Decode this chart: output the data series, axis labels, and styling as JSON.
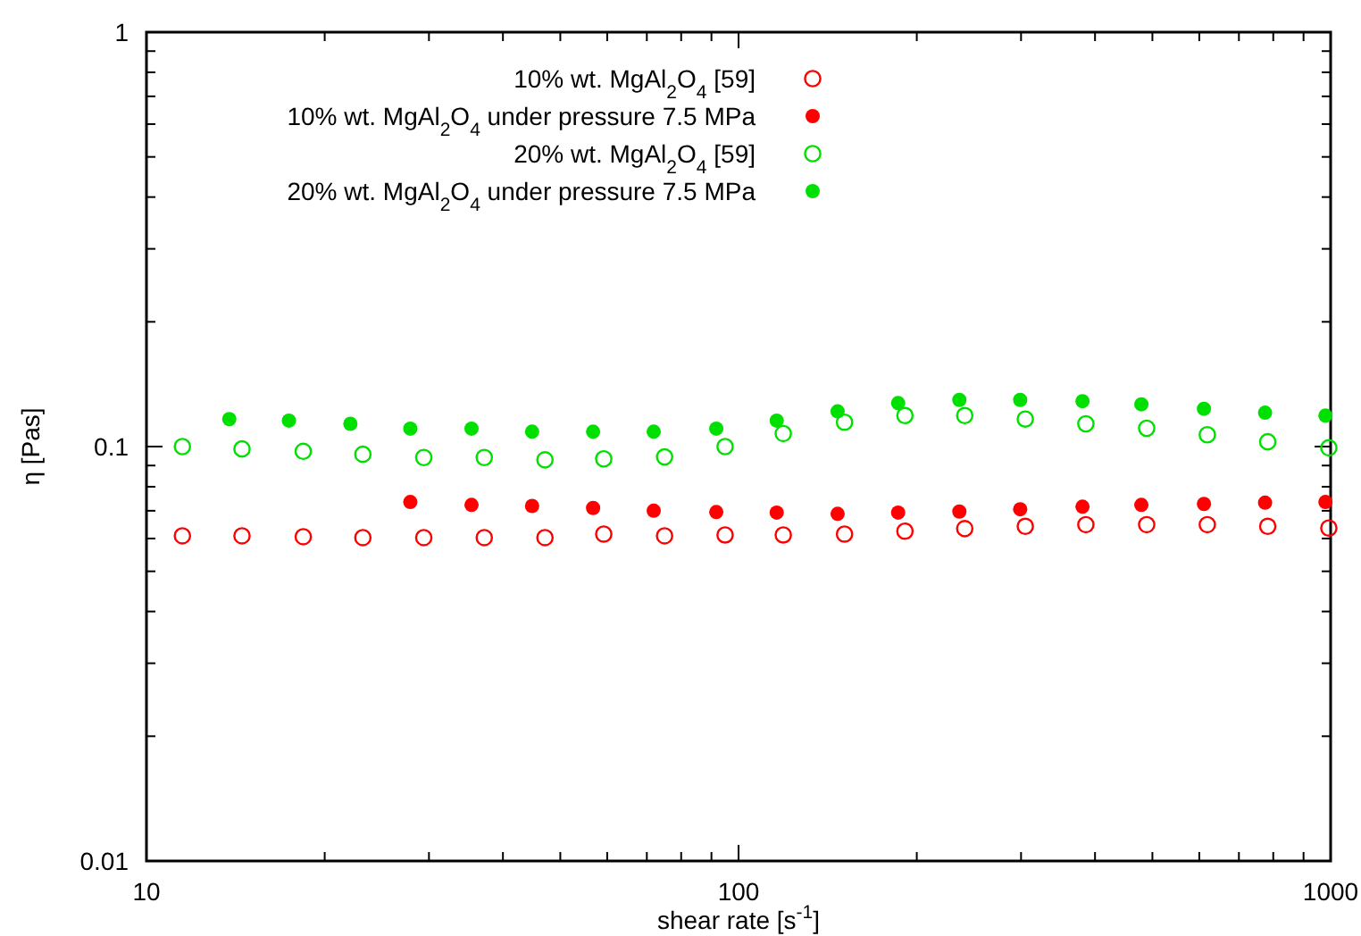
{
  "chart_data": {
    "type": "scatter",
    "xlabel": "shear rate [s$^{-1}$]",
    "ylabel": "η [Pas]",
    "log": "xy",
    "legend": "top",
    "marker": "circle",
    "grid": false,
    "xlim": [
      10,
      1000
    ],
    "xticks": [
      10,
      100,
      1000,
      {
        "value": 20,
        "label": null
      },
      {
        "value": 30,
        "label": null
      },
      {
        "value": 40,
        "label": null
      },
      {
        "value": 50,
        "label": null
      },
      {
        "value": 60,
        "label": null
      },
      {
        "value": 70,
        "label": null
      },
      {
        "value": 80,
        "label": null
      },
      {
        "value": 90,
        "label": null
      },
      {
        "value": 200,
        "label": null
      },
      {
        "value": 300,
        "label": null
      },
      {
        "value": 400,
        "label": null
      },
      {
        "value": 500,
        "label": null
      },
      {
        "value": 600,
        "label": null
      },
      {
        "value": 700,
        "label": null
      },
      {
        "value": 800,
        "label": null
      },
      {
        "value": 900,
        "label": null
      }
    ],
    "ylim": [
      0.01,
      1
    ],
    "yticks": [
      0.01,
      0.1,
      1,
      {
        "value": 0.02,
        "label": null
      },
      {
        "value": 0.03,
        "label": null
      },
      {
        "value": 0.04,
        "label": null
      },
      {
        "value": 0.05,
        "label": null
      },
      {
        "value": 0.06,
        "label": null
      },
      {
        "value": 0.07,
        "label": null
      },
      {
        "value": 0.08,
        "label": null
      },
      {
        "value": 0.09,
        "label": null
      },
      {
        "value": 0.2,
        "label": null
      },
      {
        "value": 0.3,
        "label": null
      },
      {
        "value": 0.4,
        "label": null
      },
      {
        "value": 0.5,
        "label": null
      },
      {
        "value": 0.6,
        "label": null
      },
      {
        "value": 0.7,
        "label": null
      },
      {
        "value": 0.8,
        "label": null
      },
      {
        "value": 0.9,
        "label": null
      }
    ],
    "series": [
      {
        "name": "10% wt. MgAl$_{2}$O$_{4}$ [59]",
        "color": "#ff0000",
        "x": [
          11.5,
          14.5,
          18.4,
          23.2,
          29.4,
          37.2,
          47.1,
          59.2,
          75.0,
          94.9,
          119,
          151,
          191,
          241,
          305,
          386,
          489,
          619,
          783,
          993
        ],
        "values": [
          0.0609,
          0.0609,
          0.0606,
          0.0603,
          0.0603,
          0.0603,
          0.0603,
          0.0615,
          0.0609,
          0.0612,
          0.0612,
          0.0615,
          0.0625,
          0.0634,
          0.0642,
          0.0648,
          0.0648,
          0.0648,
          0.0642,
          0.0636
        ]
      },
      {
        "name": "10% wt. MgAl$_{2}$O$_{4}$ under pressure 7.5 MPa",
        "color": "#ff0000",
        "x": [
          27.9,
          35.4,
          44.8,
          56.8,
          71.9,
          91.7,
          116,
          147,
          186,
          236,
          299,
          381,
          479,
          611,
          775,
          980
        ],
        "values": [
          0.0735,
          0.0723,
          0.0719,
          0.0711,
          0.07,
          0.0695,
          0.0693,
          0.0688,
          0.0693,
          0.0697,
          0.0706,
          0.0716,
          0.0723,
          0.0727,
          0.0732,
          0.0735
        ]
      },
      {
        "name": "20% wt. MgAl$_{2}$O$_{4}$ [59]",
        "color": "#00e000",
        "x": [
          11.5,
          14.5,
          18.4,
          23.2,
          29.4,
          37.2,
          47.1,
          59.2,
          75.0,
          94.9,
          119,
          151,
          191,
          241,
          305,
          386,
          489,
          619,
          783,
          993
        ],
        "values": [
          0.1,
          0.0987,
          0.0974,
          0.0958,
          0.0941,
          0.0941,
          0.0929,
          0.0934,
          0.0944,
          0.1,
          0.1075,
          0.1145,
          0.1188,
          0.1188,
          0.1165,
          0.1135,
          0.1107,
          0.1068,
          0.1027,
          0.0993
        ]
      },
      {
        "name": "20% wt. MgAl$_{2}$O$_{4}$ under pressure 7.5 MPa",
        "color": "#00e000",
        "x": [
          13.8,
          17.4,
          22.1,
          27.9,
          35.4,
          44.8,
          56.8,
          71.9,
          91.7,
          116,
          147,
          186,
          236,
          299,
          381,
          479,
          611,
          775,
          980
        ],
        "values": [
          0.1165,
          0.1155,
          0.1135,
          0.1105,
          0.1105,
          0.1086,
          0.1086,
          0.1086,
          0.1105,
          0.1155,
          0.1216,
          0.1273,
          0.1296,
          0.1296,
          0.1287,
          0.1265,
          0.1234,
          0.1207,
          0.1188
        ]
      }
    ]
  }
}
